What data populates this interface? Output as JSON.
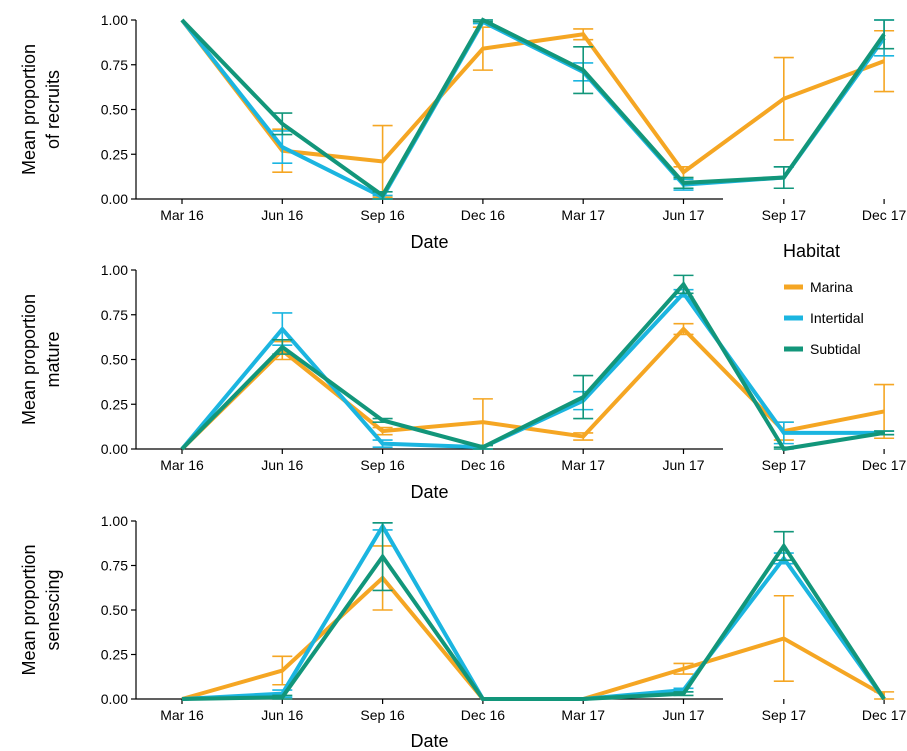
{
  "legend": {
    "title": "Habitat",
    "position": "right",
    "items": [
      {
        "name": "Marina",
        "color": "#F5A623"
      },
      {
        "name": "Intertidal",
        "color": "#1BB5E0"
      },
      {
        "name": "Subtidal",
        "color": "#12967A"
      }
    ]
  },
  "chart_data": [
    {
      "type": "line",
      "title": "",
      "xlabel": "Date",
      "ylabel_lines": [
        "Mean proportion",
        "of recruits"
      ],
      "categories": [
        "Mar 16",
        "Jun 16",
        "Sep 16",
        "Dec 16",
        "Mar 17",
        "Jun 17",
        "Sep 17",
        "Dec 17"
      ],
      "ylim": [
        0,
        1
      ],
      "yticks": [
        "0.00",
        "0.25",
        "0.50",
        "0.75",
        "1.00"
      ],
      "grid": false,
      "series": [
        {
          "name": "Marina",
          "color": "#F5A623",
          "values": [
            1.0,
            0.27,
            0.21,
            0.84,
            0.92,
            0.15,
            0.56,
            0.77
          ],
          "err": [
            null,
            0.12,
            0.2,
            0.12,
            0.03,
            0.03,
            0.23,
            0.17
          ]
        },
        {
          "name": "Intertidal",
          "color": "#1BB5E0",
          "values": [
            1.0,
            0.29,
            0.01,
            0.99,
            0.71,
            0.08,
            0.12,
            0.9
          ],
          "err": [
            null,
            0.09,
            0.01,
            0.01,
            0.05,
            0.03,
            0.06,
            0.1
          ]
        },
        {
          "name": "Subtidal",
          "color": "#12967A",
          "values": [
            1.0,
            0.42,
            0.02,
            1.0,
            0.72,
            0.09,
            0.12,
            0.92
          ],
          "err": [
            null,
            0.06,
            0.02,
            0.01,
            0.13,
            0.03,
            0.06,
            0.08
          ]
        }
      ]
    },
    {
      "type": "line",
      "title": "",
      "xlabel": "Date",
      "ylabel_lines": [
        "Mean proportion",
        "mature"
      ],
      "categories": [
        "Mar 16",
        "Jun 16",
        "Sep 16",
        "Dec 16",
        "Mar 17",
        "Jun 17",
        "Sep 17",
        "Dec 17"
      ],
      "ylim": [
        0,
        1
      ],
      "yticks": [
        "0.00",
        "0.25",
        "0.50",
        "0.75",
        "1.00"
      ],
      "grid": false,
      "series": [
        {
          "name": "Marina",
          "color": "#F5A623",
          "values": [
            0.0,
            0.55,
            0.1,
            0.15,
            0.07,
            0.67,
            0.1,
            0.21
          ],
          "err": [
            null,
            0.05,
            0.02,
            0.13,
            0.02,
            0.03,
            0.05,
            0.15
          ]
        },
        {
          "name": "Intertidal",
          "color": "#1BB5E0",
          "values": [
            0.0,
            0.67,
            0.03,
            0.01,
            0.27,
            0.87,
            0.09,
            0.09
          ],
          "err": [
            null,
            0.09,
            0.02,
            0.01,
            0.05,
            0.02,
            0.06,
            0.01
          ]
        },
        {
          "name": "Subtidal",
          "color": "#12967A",
          "values": [
            0.0,
            0.57,
            0.16,
            0.01,
            0.29,
            0.92,
            0.0,
            0.09
          ],
          "err": [
            null,
            0.04,
            0.01,
            0.01,
            0.12,
            0.05,
            0.01,
            0.01
          ]
        }
      ]
    },
    {
      "type": "line",
      "title": "",
      "xlabel": "Date",
      "ylabel_lines": [
        "Mean proportion",
        "senescing"
      ],
      "categories": [
        "Mar 16",
        "Jun 16",
        "Sep 16",
        "Dec 16",
        "Mar 17",
        "Jun 17",
        "Sep 17",
        "Dec 17"
      ],
      "ylim": [
        0,
        1
      ],
      "yticks": [
        "0.00",
        "0.25",
        "0.50",
        "0.75",
        "1.00"
      ],
      "grid": false,
      "series": [
        {
          "name": "Marina",
          "color": "#F5A623",
          "values": [
            0.0,
            0.16,
            0.68,
            0.0,
            0.0,
            0.17,
            0.34,
            0.02
          ],
          "err": [
            null,
            0.08,
            0.18,
            null,
            null,
            0.03,
            0.24,
            0.02
          ]
        },
        {
          "name": "Intertidal",
          "color": "#1BB5E0",
          "values": [
            0.0,
            0.03,
            0.97,
            0.0,
            0.0,
            0.05,
            0.79,
            0.0
          ],
          "err": [
            null,
            0.02,
            0.02,
            null,
            null,
            0.01,
            0.03,
            null
          ]
        },
        {
          "name": "Subtidal",
          "color": "#12967A",
          "values": [
            0.0,
            0.01,
            0.8,
            0.0,
            0.0,
            0.03,
            0.86,
            0.0
          ],
          "err": [
            null,
            0.01,
            0.19,
            null,
            null,
            0.01,
            0.08,
            null
          ]
        }
      ]
    }
  ]
}
